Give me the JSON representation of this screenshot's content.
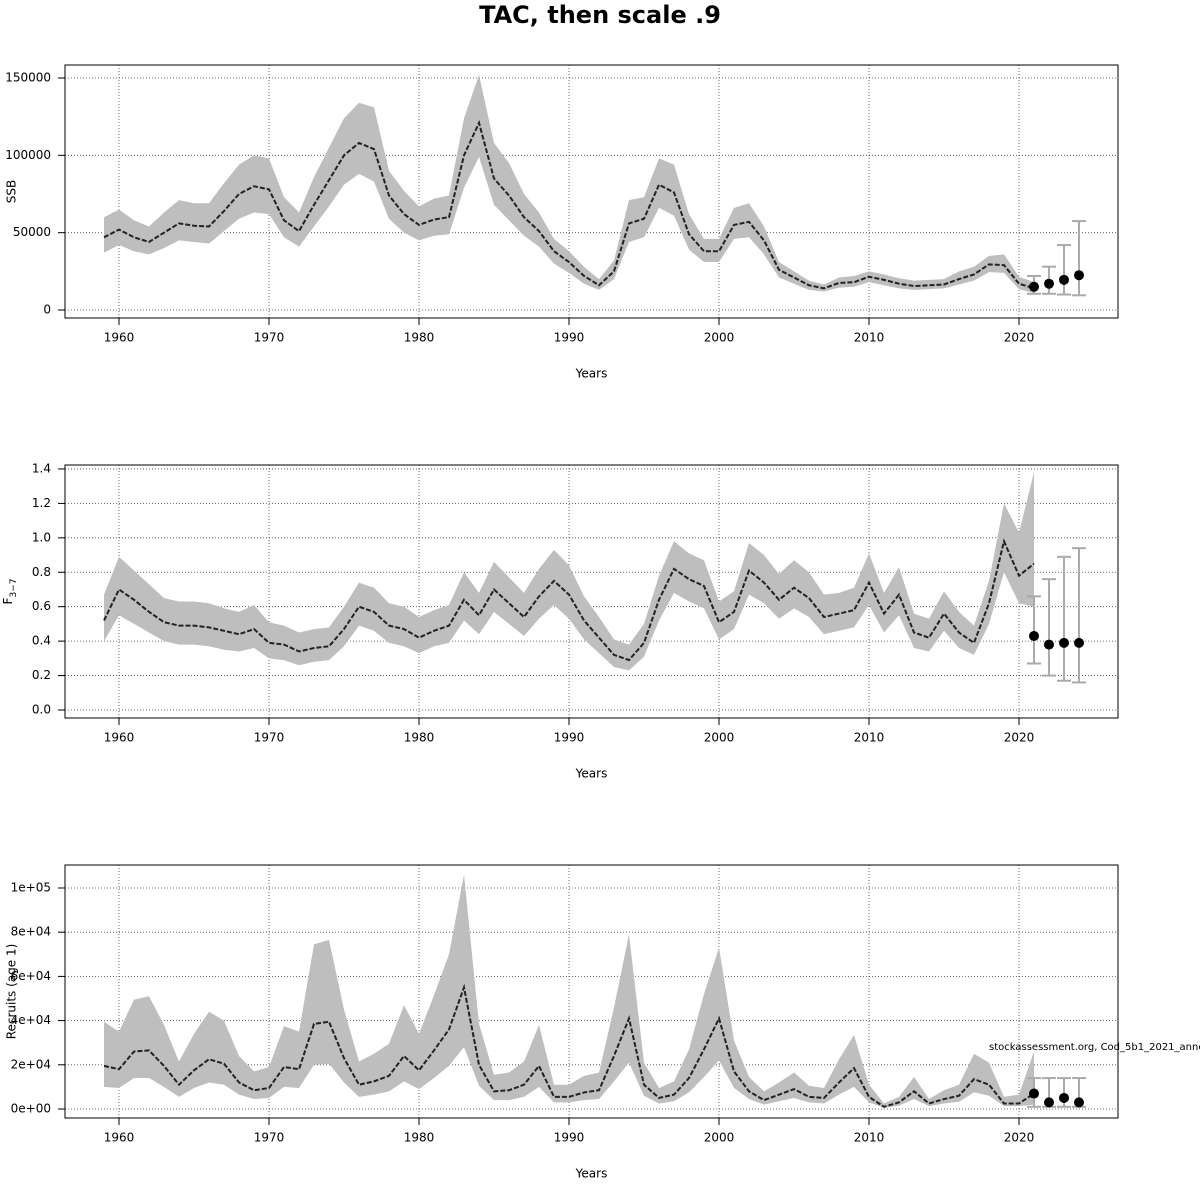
{
  "title": "TAC, then scale .9",
  "chart_data": [
    {
      "type": "band-line",
      "ylabel": "SSB",
      "xlabel": "Years",
      "x": [
        1959,
        1960,
        1961,
        1962,
        1963,
        1964,
        1965,
        1966,
        1967,
        1968,
        1969,
        1970,
        1971,
        1972,
        1973,
        1974,
        1975,
        1976,
        1977,
        1978,
        1979,
        1980,
        1981,
        1982,
        1983,
        1984,
        1985,
        1986,
        1987,
        1988,
        1989,
        1990,
        1991,
        1992,
        1993,
        1994,
        1995,
        1996,
        1997,
        1998,
        1999,
        2000,
        2001,
        2002,
        2003,
        2004,
        2005,
        2006,
        2007,
        2008,
        2009,
        2010,
        2011,
        2012,
        2013,
        2014,
        2015,
        2016,
        2017,
        2018,
        2019,
        2020,
        2021
      ],
      "values": [
        47000,
        52000,
        47000,
        44000,
        50000,
        56000,
        54500,
        54000,
        64000,
        75000,
        80000,
        78000,
        58000,
        51000,
        68000,
        84000,
        100000,
        108000,
        104000,
        74000,
        62000,
        55000,
        58500,
        60000,
        100000,
        121000,
        85000,
        74000,
        60000,
        51000,
        38000,
        31000,
        22000,
        16000,
        25000,
        56000,
        59000,
        81000,
        76000,
        49000,
        38000,
        38000,
        55000,
        57000,
        45000,
        26000,
        21000,
        16000,
        14000,
        17500,
        18000,
        21500,
        19500,
        17000,
        15500,
        16000,
        16500,
        20000,
        23000,
        29500,
        29000,
        17000,
        14000
      ],
      "lower": [
        37000,
        42000,
        38000,
        36000,
        40000,
        45000,
        44000,
        43000,
        51000,
        59000,
        63000,
        62000,
        47000,
        41000,
        54000,
        67000,
        81000,
        88000,
        83000,
        59000,
        50000,
        45000,
        48000,
        49000,
        79000,
        99000,
        68000,
        58000,
        48000,
        41000,
        30000,
        24000,
        17000,
        13000,
        20000,
        44000,
        47000,
        66000,
        61000,
        39000,
        31000,
        31000,
        46000,
        47000,
        36000,
        21000,
        17000,
        13000,
        12000,
        14500,
        15000,
        18000,
        16000,
        14000,
        13000,
        13500,
        14000,
        16500,
        19000,
        24500,
        24000,
        13500,
        11000
      ],
      "upper": [
        60000,
        65000,
        58000,
        54000,
        63000,
        71000,
        69000,
        69000,
        82000,
        94000,
        100000,
        98000,
        73000,
        63000,
        86000,
        105000,
        124000,
        134000,
        131000,
        90000,
        77000,
        67000,
        72000,
        74000,
        124000,
        152000,
        108000,
        95000,
        75000,
        63000,
        46000,
        38000,
        28000,
        20000,
        32000,
        71000,
        73000,
        98000,
        94000,
        62000,
        46000,
        46000,
        66000,
        69000,
        54000,
        31000,
        25000,
        19000,
        16500,
        21000,
        22000,
        25000,
        23000,
        20500,
        19000,
        19500,
        20000,
        25000,
        28000,
        35000,
        36000,
        21500,
        18000
      ],
      "forecast": {
        "x": [
          2021,
          2022,
          2023,
          2024
        ],
        "values": [
          15000,
          17000,
          19500,
          22500
        ],
        "lower": [
          10500,
          10500,
          10000,
          9500
        ],
        "upper": [
          22000,
          28000,
          42000,
          57500
        ]
      },
      "xlim": [
        1956.4,
        2026.6
      ],
      "xticks": [
        1960,
        1970,
        1980,
        1990,
        2000,
        2010,
        2020
      ],
      "ylim": [
        -5172,
        158400
      ],
      "yticks": [
        0,
        50000,
        100000,
        150000
      ],
      "band_color": "#bebebe",
      "line_color": "#222222",
      "forecast_color": "#aaaaaa",
      "grid": true
    },
    {
      "type": "band-line",
      "ylabel": {
        "main": "F",
        "sub": "3−7"
      },
      "xlabel": "Years",
      "x": [
        1959,
        1960,
        1961,
        1962,
        1963,
        1964,
        1965,
        1966,
        1967,
        1968,
        1969,
        1970,
        1971,
        1972,
        1973,
        1974,
        1975,
        1976,
        1977,
        1978,
        1979,
        1980,
        1981,
        1982,
        1983,
        1984,
        1985,
        1986,
        1987,
        1988,
        1989,
        1990,
        1991,
        1992,
        1993,
        1994,
        1995,
        1996,
        1997,
        1998,
        1999,
        2000,
        2001,
        2002,
        2003,
        2004,
        2005,
        2006,
        2007,
        2008,
        2009,
        2010,
        2011,
        2012,
        2013,
        2014,
        2015,
        2016,
        2017,
        2018,
        2019,
        2020,
        2021
      ],
      "values": [
        0.52,
        0.7,
        0.64,
        0.57,
        0.51,
        0.49,
        0.49,
        0.48,
        0.46,
        0.44,
        0.47,
        0.39,
        0.38,
        0.34,
        0.36,
        0.37,
        0.47,
        0.6,
        0.57,
        0.49,
        0.47,
        0.42,
        0.46,
        0.49,
        0.64,
        0.55,
        0.7,
        0.62,
        0.54,
        0.66,
        0.75,
        0.67,
        0.52,
        0.42,
        0.32,
        0.29,
        0.39,
        0.64,
        0.82,
        0.76,
        0.72,
        0.51,
        0.57,
        0.81,
        0.74,
        0.64,
        0.71,
        0.65,
        0.54,
        0.56,
        0.58,
        0.74,
        0.56,
        0.67,
        0.45,
        0.42,
        0.56,
        0.45,
        0.39,
        0.62,
        0.98,
        0.78,
        0.85
      ],
      "lower": [
        0.4,
        0.55,
        0.5,
        0.45,
        0.4,
        0.38,
        0.38,
        0.37,
        0.35,
        0.34,
        0.36,
        0.3,
        0.29,
        0.26,
        0.28,
        0.29,
        0.37,
        0.49,
        0.46,
        0.39,
        0.37,
        0.33,
        0.37,
        0.39,
        0.52,
        0.44,
        0.57,
        0.5,
        0.43,
        0.53,
        0.61,
        0.53,
        0.41,
        0.33,
        0.25,
        0.23,
        0.31,
        0.52,
        0.68,
        0.63,
        0.59,
        0.41,
        0.47,
        0.67,
        0.62,
        0.53,
        0.59,
        0.54,
        0.44,
        0.46,
        0.48,
        0.61,
        0.45,
        0.55,
        0.36,
        0.34,
        0.46,
        0.36,
        0.32,
        0.5,
        0.8,
        0.62,
        0.6
      ],
      "upper": [
        0.67,
        0.89,
        0.81,
        0.73,
        0.65,
        0.63,
        0.63,
        0.62,
        0.59,
        0.57,
        0.61,
        0.51,
        0.49,
        0.45,
        0.47,
        0.48,
        0.6,
        0.74,
        0.71,
        0.62,
        0.6,
        0.54,
        0.58,
        0.61,
        0.8,
        0.68,
        0.86,
        0.77,
        0.68,
        0.82,
        0.93,
        0.84,
        0.66,
        0.54,
        0.41,
        0.38,
        0.5,
        0.78,
        0.98,
        0.91,
        0.87,
        0.63,
        0.69,
        0.97,
        0.9,
        0.79,
        0.87,
        0.8,
        0.67,
        0.68,
        0.71,
        0.91,
        0.68,
        0.83,
        0.56,
        0.53,
        0.69,
        0.57,
        0.49,
        0.75,
        1.2,
        1.03,
        1.38
      ],
      "forecast": {
        "x": [
          2021,
          2022,
          2023,
          2024
        ],
        "values": [
          0.43,
          0.38,
          0.39,
          0.39
        ],
        "lower": [
          0.27,
          0.2,
          0.17,
          0.16
        ],
        "upper": [
          0.66,
          0.76,
          0.89,
          0.94
        ]
      },
      "xlim": [
        1956.4,
        2026.6
      ],
      "xticks": [
        1960,
        1970,
        1980,
        1990,
        2000,
        2010,
        2020
      ],
      "ylim": [
        -0.0465,
        1.423
      ],
      "yticks": [
        {
          "value": 0,
          "label": "0.0"
        },
        0.2,
        0.4,
        0.6,
        0.8,
        {
          "value": 1,
          "label": "1.0"
        },
        1.2,
        1.4
      ],
      "band_color": "#bebebe",
      "line_color": "#222222",
      "forecast_color": "#aaaaaa",
      "grid": true
    },
    {
      "type": "band-line",
      "ylabel": "Recruits (age 1)",
      "xlabel": "Years",
      "annotation": "stockassessment.org, Cod_5b1_2021_anne",
      "x": [
        1959,
        1960,
        1961,
        1962,
        1963,
        1964,
        1965,
        1966,
        1967,
        1968,
        1969,
        1970,
        1971,
        1972,
        1973,
        1974,
        1975,
        1976,
        1977,
        1978,
        1979,
        1980,
        1981,
        1982,
        1983,
        1984,
        1985,
        1986,
        1987,
        1988,
        1989,
        1990,
        1991,
        1992,
        1993,
        1994,
        1995,
        1996,
        1997,
        1998,
        1999,
        2000,
        2001,
        2002,
        2003,
        2004,
        2005,
        2006,
        2007,
        2008,
        2009,
        2010,
        2011,
        2012,
        2013,
        2014,
        2015,
        2016,
        2017,
        2018,
        2019,
        2020,
        2021
      ],
      "values": [
        19500,
        18000,
        26000,
        26500,
        19500,
        11000,
        17500,
        22500,
        20500,
        12000,
        8500,
        9500,
        19000,
        18000,
        38500,
        39500,
        23000,
        11000,
        12500,
        15000,
        24000,
        17500,
        26500,
        36000,
        55000,
        20000,
        8000,
        8500,
        11000,
        19500,
        5500,
        5500,
        7500,
        8500,
        24000,
        41000,
        11000,
        5000,
        6500,
        14000,
        27000,
        41000,
        17000,
        8000,
        4000,
        6500,
        9000,
        5500,
        5000,
        12000,
        18500,
        5500,
        1000,
        3000,
        8000,
        2500,
        4500,
        6000,
        13500,
        11000,
        2500,
        2500,
        7000
      ],
      "lower": [
        10000,
        9500,
        14000,
        14000,
        10000,
        5500,
        9500,
        12000,
        11000,
        6500,
        4500,
        5000,
        10000,
        9500,
        20000,
        20500,
        12000,
        5500,
        6500,
        8000,
        12500,
        9000,
        14000,
        19500,
        28000,
        10500,
        4000,
        4000,
        5500,
        10000,
        3000,
        3000,
        4000,
        4500,
        12500,
        21000,
        6000,
        2500,
        3500,
        7500,
        14500,
        22000,
        9500,
        4500,
        2000,
        3500,
        5000,
        3000,
        2500,
        6500,
        10000,
        3000,
        500,
        1500,
        4500,
        1300,
        2500,
        3300,
        7500,
        6000,
        1300,
        1300,
        2000
      ],
      "upper": [
        39500,
        35000,
        49500,
        51000,
        38000,
        21500,
        34000,
        44000,
        40000,
        24000,
        17000,
        19000,
        37500,
        35000,
        74500,
        76500,
        45000,
        21500,
        25000,
        29500,
        47000,
        34000,
        51500,
        70000,
        106000,
        38500,
        15500,
        16500,
        21500,
        38000,
        11000,
        11000,
        15000,
        16500,
        46000,
        79000,
        21000,
        9500,
        12500,
        27000,
        52000,
        73000,
        31000,
        14500,
        8000,
        12000,
        16500,
        10500,
        9500,
        22500,
        33500,
        11000,
        2500,
        5500,
        14500,
        4500,
        8500,
        11000,
        25000,
        21000,
        5500,
        6500,
        26000
      ],
      "forecast": {
        "x": [
          2021,
          2022,
          2023,
          2024
        ],
        "values": [
          7000,
          3000,
          5000,
          3000
        ],
        "lower": [
          1000,
          1000,
          1000,
          1000
        ],
        "upper": [
          14000,
          14000,
          14000,
          14000
        ]
      },
      "xlim": [
        1956.4,
        2026.6
      ],
      "xticks": [
        1960,
        1970,
        1980,
        1990,
        2000,
        2010,
        2020
      ],
      "ylim": [
        -4072,
        110400
      ],
      "yticks": [
        {
          "value": 0,
          "label": "0e+00"
        },
        {
          "value": 20000,
          "label": "2e+04"
        },
        {
          "value": 40000,
          "label": "4e+04"
        },
        {
          "value": 60000,
          "label": "6e+04"
        },
        {
          "value": 80000,
          "label": "8e+04"
        },
        {
          "value": 100000,
          "label": "1e+05"
        }
      ],
      "band_color": "#bebebe",
      "line_color": "#222222",
      "forecast_color": "#aaaaaa",
      "grid": true
    }
  ]
}
